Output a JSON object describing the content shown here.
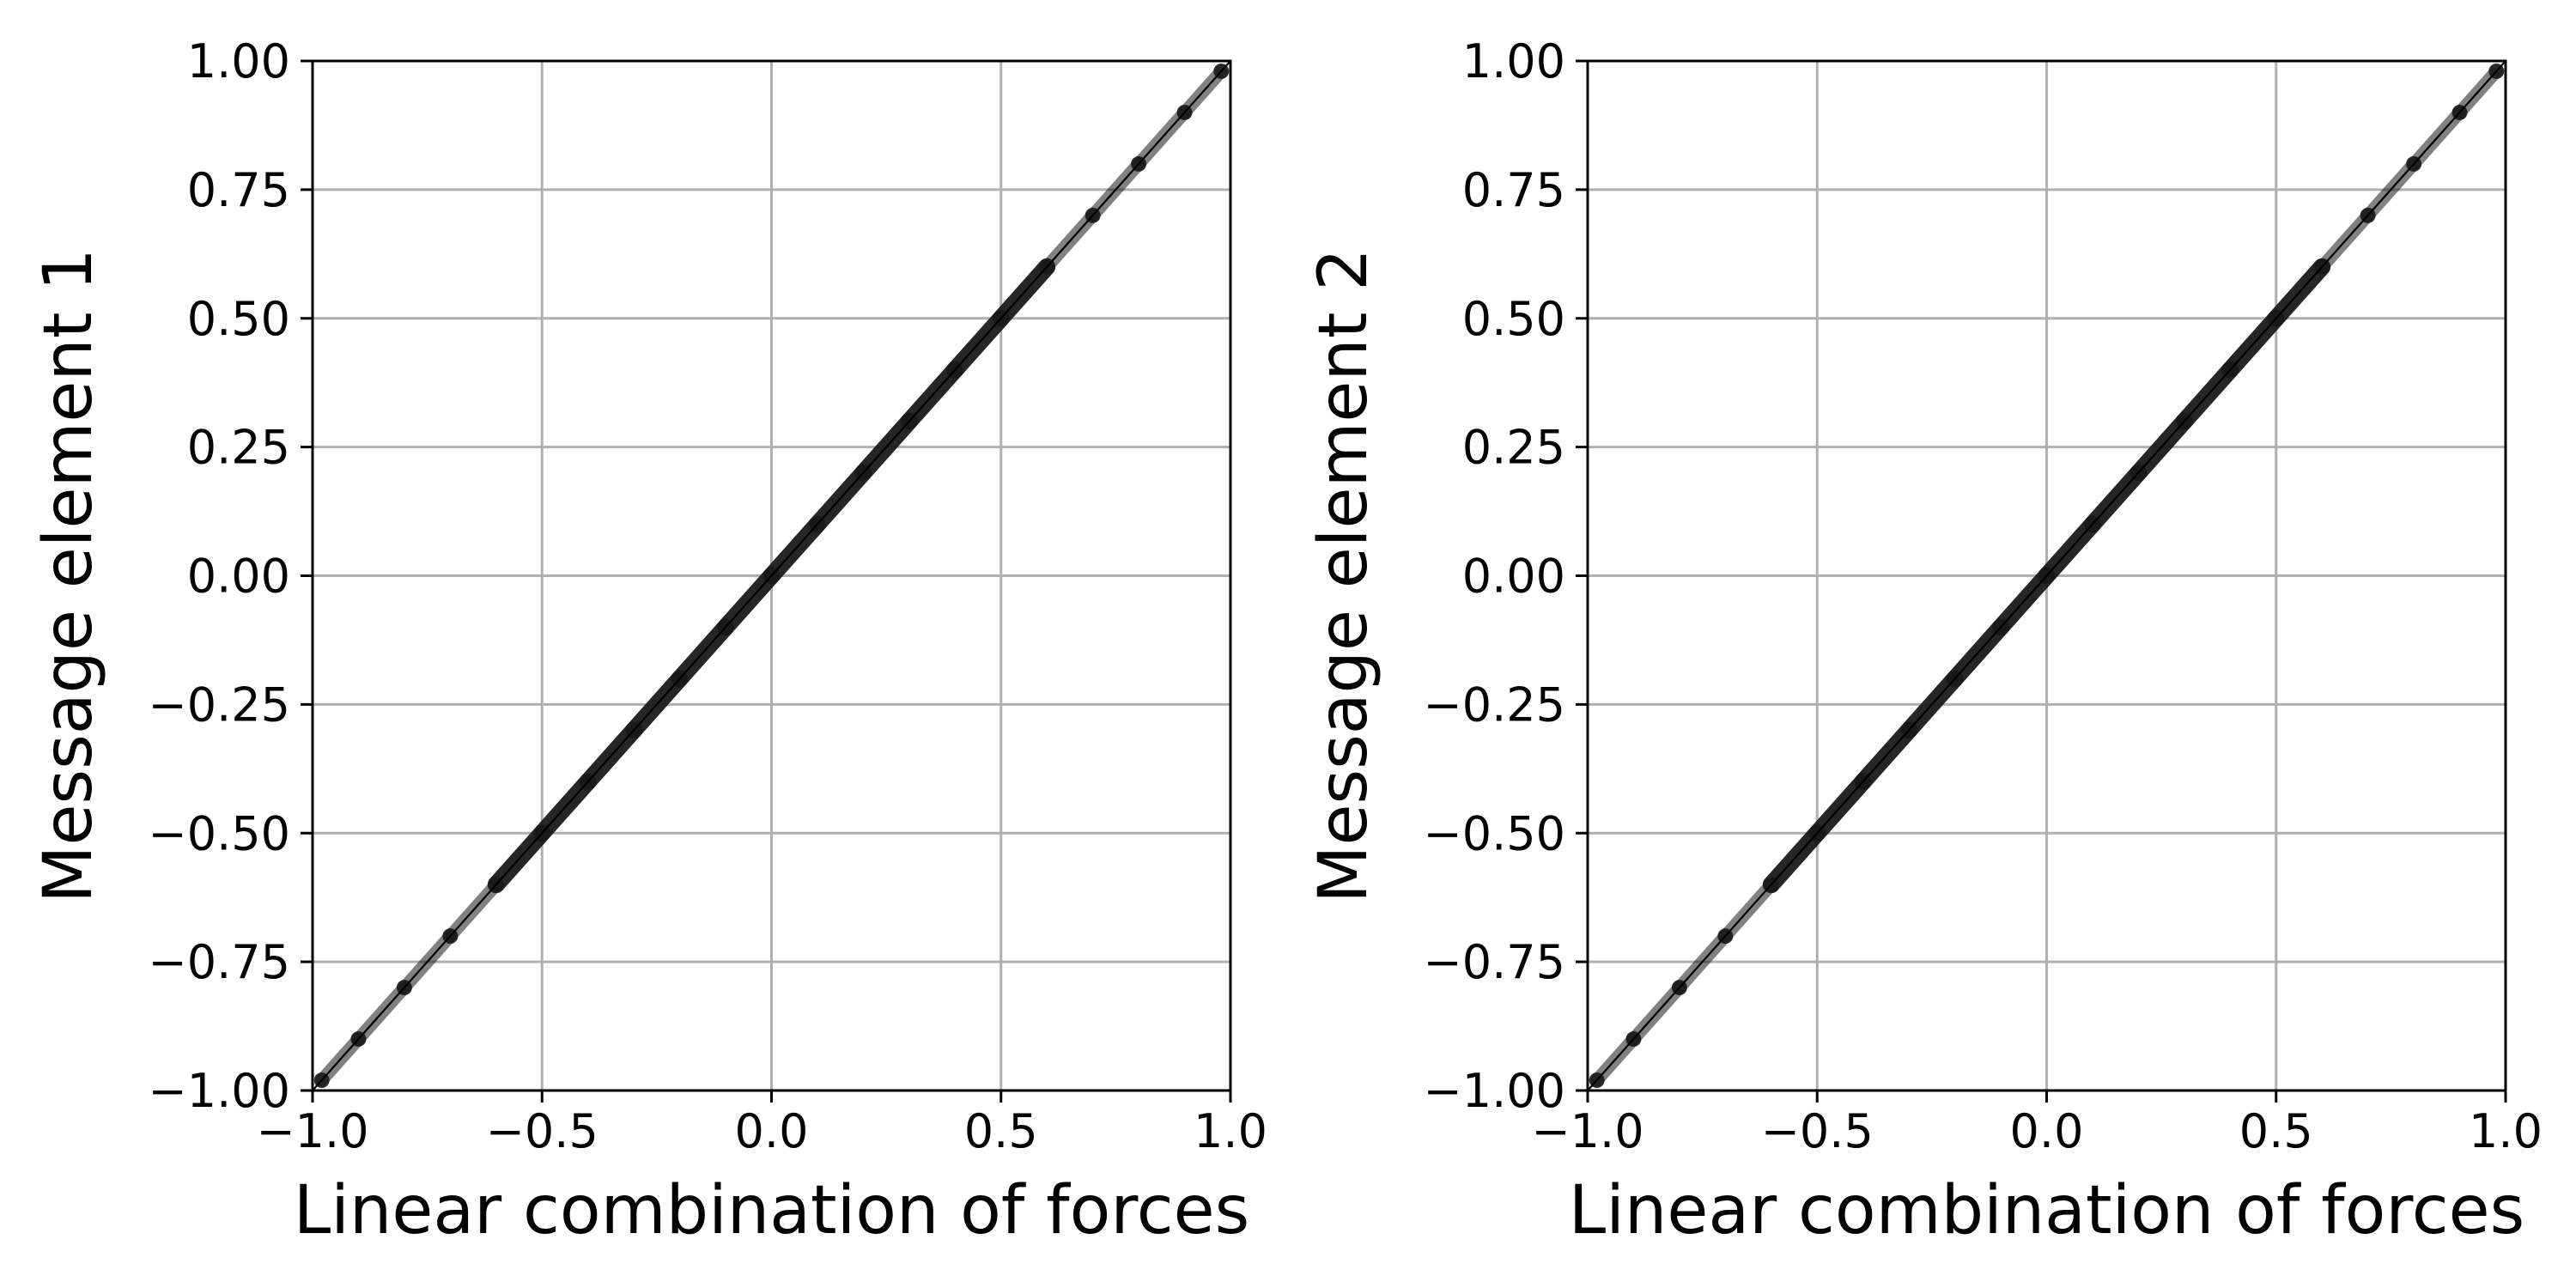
{
  "chart_data": [
    {
      "type": "scatter",
      "xlabel": "Linear combination of forces",
      "ylabel": "Message element 1",
      "xlim": [
        -1.0,
        1.0
      ],
      "ylim": [
        -1.0,
        1.0
      ],
      "x_ticks": [
        "−1.0",
        "−0.5",
        "0.0",
        "0.5",
        "1.0"
      ],
      "x_tick_values": [
        -1.0,
        -0.5,
        0.0,
        0.5,
        1.0
      ],
      "y_ticks": [
        "−1.00",
        "−0.75",
        "−0.50",
        "−0.25",
        "0.00",
        "0.25",
        "0.50",
        "0.75",
        "1.00"
      ],
      "y_tick_values": [
        -1.0,
        -0.75,
        -0.5,
        -0.25,
        0.0,
        0.25,
        0.5,
        0.75,
        1.0
      ],
      "grid": true,
      "reference_line": {
        "x": [
          -1.0,
          1.0
        ],
        "y": [
          -1.0,
          1.0
        ]
      },
      "series": [
        {
          "x": [
            -0.98,
            -0.9,
            -0.8,
            -0.7,
            -0.6,
            -0.5,
            -0.4,
            -0.3,
            -0.2,
            -0.1,
            0.0,
            0.1,
            0.2,
            0.3,
            0.4,
            0.5,
            0.6,
            0.7,
            0.8,
            0.9,
            0.98
          ],
          "y": [
            -0.98,
            -0.9,
            -0.8,
            -0.7,
            -0.6,
            -0.5,
            -0.4,
            -0.3,
            -0.2,
            -0.1,
            0.0,
            0.1,
            0.2,
            0.3,
            0.4,
            0.5,
            0.6,
            0.7,
            0.8,
            0.9,
            0.98
          ],
          "color": "#1a1a1a"
        }
      ]
    },
    {
      "type": "scatter",
      "xlabel": "Linear combination of forces",
      "ylabel": "Message element 2",
      "xlim": [
        -1.0,
        1.0
      ],
      "ylim": [
        -1.0,
        1.0
      ],
      "x_ticks": [
        "−1.0",
        "−0.5",
        "0.0",
        "0.5",
        "1.0"
      ],
      "x_tick_values": [
        -1.0,
        -0.5,
        0.0,
        0.5,
        1.0
      ],
      "y_ticks": [
        "−1.00",
        "−0.75",
        "−0.50",
        "−0.25",
        "0.00",
        "0.25",
        "0.50",
        "0.75",
        "1.00"
      ],
      "y_tick_values": [
        -1.0,
        -0.75,
        -0.5,
        -0.25,
        0.0,
        0.25,
        0.5,
        0.75,
        1.0
      ],
      "grid": true,
      "reference_line": {
        "x": [
          -1.0,
          1.0
        ],
        "y": [
          -1.0,
          1.0
        ]
      },
      "series": [
        {
          "x": [
            -0.98,
            -0.9,
            -0.8,
            -0.7,
            -0.6,
            -0.5,
            -0.4,
            -0.3,
            -0.2,
            -0.1,
            0.0,
            0.1,
            0.2,
            0.3,
            0.4,
            0.5,
            0.6,
            0.7,
            0.8,
            0.9,
            0.98
          ],
          "y": [
            -0.98,
            -0.9,
            -0.8,
            -0.7,
            -0.6,
            -0.5,
            -0.4,
            -0.3,
            -0.2,
            -0.1,
            0.0,
            0.1,
            0.2,
            0.3,
            0.4,
            0.5,
            0.6,
            0.7,
            0.8,
            0.9,
            0.98
          ],
          "color": "#1a1a1a"
        }
      ]
    }
  ]
}
